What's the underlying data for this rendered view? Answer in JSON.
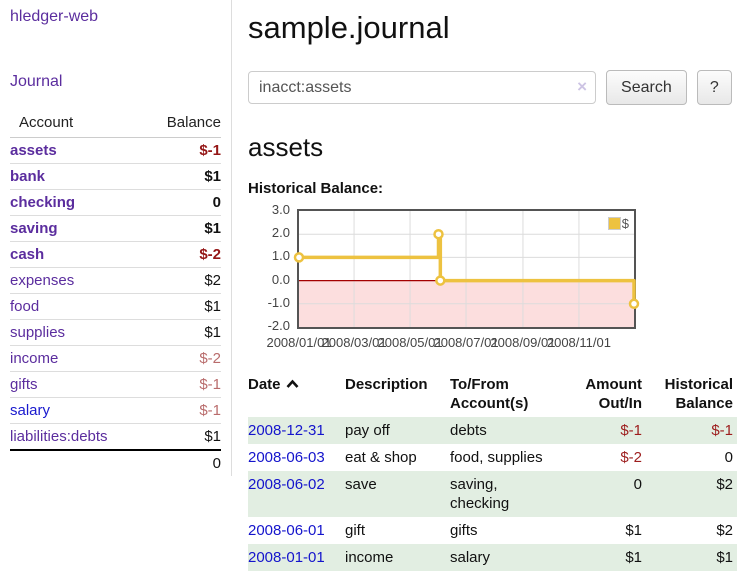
{
  "colors": {
    "link_purple": "#5b2d9e",
    "link_blue": "#1a1ace",
    "negative_strong": "#941616",
    "negative_soft": "#b96c6c",
    "table_negative": "#9d1d1d",
    "row_stripe_green": "#e2eee2",
    "series_gold": "#edc240",
    "chart_negative_fill": "#fcdede",
    "chart_zero_line": "#a40000"
  },
  "sidebar": {
    "app_title": "hledger-web",
    "journal_link": "Journal",
    "account_header": "Account",
    "balance_header": "Balance",
    "accounts": [
      {
        "name": "assets",
        "balance": "$-1"
      },
      {
        "name": "bank",
        "balance": "$1"
      },
      {
        "name": "checking",
        "balance": "0"
      },
      {
        "name": "saving",
        "balance": "$1"
      },
      {
        "name": "cash",
        "balance": "$-2"
      },
      {
        "name": "expenses",
        "balance": "$2"
      },
      {
        "name": "food",
        "balance": "$1"
      },
      {
        "name": "supplies",
        "balance": "$1"
      },
      {
        "name": "income",
        "balance": "$-2"
      },
      {
        "name": "gifts",
        "balance": "$-1"
      },
      {
        "name": "salary",
        "balance": "$-1"
      },
      {
        "name": "liabilities:debts",
        "balance": "$1"
      }
    ],
    "total": "0"
  },
  "main": {
    "title": "sample.journal",
    "search": {
      "value": "inacct:assets",
      "clear": "×",
      "search_button": "Search",
      "help_button": "?"
    },
    "account_heading": "assets",
    "chart_title": "Historical Balance:"
  },
  "chart_data": {
    "type": "line",
    "step": true,
    "title": "Historical Balance",
    "legend_position": "top-right",
    "grid": true,
    "x_range": [
      "2008-01-01",
      "2008-12-31"
    ],
    "ylim": [
      -2,
      3
    ],
    "y_ticks": [
      "3.0",
      "2.0",
      "1.0",
      "0.0",
      "-1.0",
      "-2.0"
    ],
    "x_ticks": [
      "2008/01/01",
      "2008/03/01",
      "2008/05/01",
      "2008/07/01",
      "2008/09/01",
      "2008/11/01"
    ],
    "series": [
      {
        "name": "$",
        "color": "#edc240",
        "points": [
          [
            "2008-01-01",
            1
          ],
          [
            "2008-06-01",
            2
          ],
          [
            "2008-06-03",
            0
          ],
          [
            "2008-12-31",
            -1
          ]
        ]
      }
    ]
  },
  "register": {
    "headers": {
      "date": "Date",
      "description": "Description",
      "account": "To/From Account(s)",
      "amount": "Amount Out/In",
      "balance": "Historical Balance"
    },
    "rows": [
      {
        "date": "2008-12-31",
        "description": "pay off",
        "accounts": "debts",
        "amount": "$-1",
        "balance": "$-1"
      },
      {
        "date": "2008-06-03",
        "description": "eat & shop",
        "accounts": "food, supplies",
        "amount": "$-2",
        "balance": "0"
      },
      {
        "date": "2008-06-02",
        "description": "save",
        "accounts": "saving, checking",
        "amount": "0",
        "balance": "$2"
      },
      {
        "date": "2008-06-01",
        "description": "gift",
        "accounts": "gifts",
        "amount": "$1",
        "balance": "$2"
      },
      {
        "date": "2008-01-01",
        "description": "income",
        "accounts": "salary",
        "amount": "$1",
        "balance": "$1"
      }
    ]
  }
}
